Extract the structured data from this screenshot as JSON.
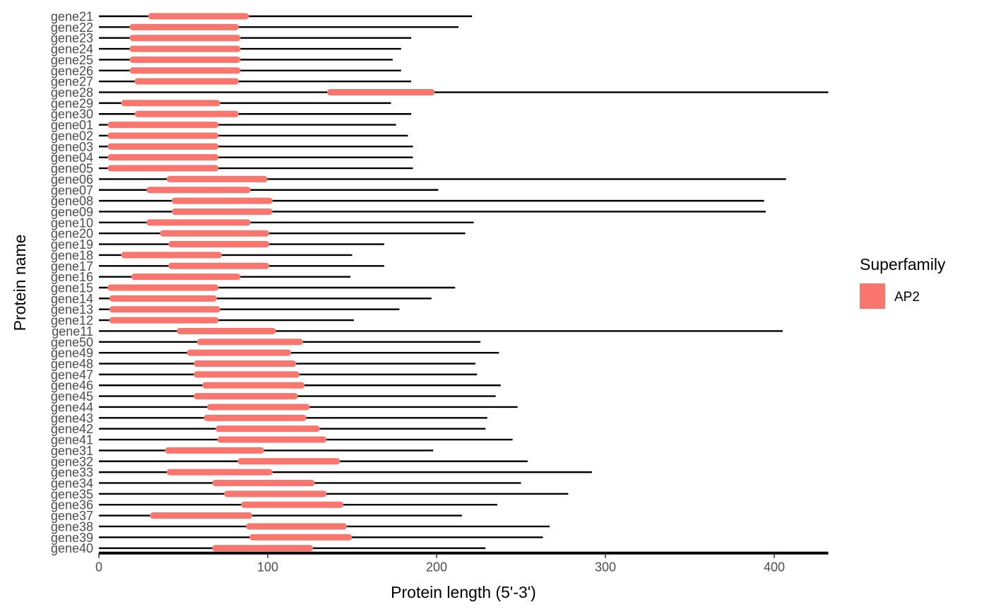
{
  "chart_data": {
    "type": "bar",
    "title": "",
    "xlabel": "Protein length (5'-3')",
    "ylabel": "Protein name",
    "xlim": [
      0,
      432
    ],
    "xticks": [
      0,
      100,
      200,
      300,
      400
    ],
    "grid": false,
    "legend": {
      "title": "Superfamily",
      "placement": "right",
      "entries": [
        {
          "label": "AP2",
          "color": "#F8766D"
        }
      ]
    },
    "colors": {
      "protein_line": "#000000",
      "domain": "#F8766D",
      "axis": "#000000"
    },
    "proteins": [
      {
        "name": "gene21",
        "length": 221,
        "domain_start": 31,
        "domain_end": 87
      },
      {
        "name": "gene22",
        "length": 213,
        "domain_start": 20,
        "domain_end": 81
      },
      {
        "name": "gene23",
        "length": 185,
        "domain_start": 20,
        "domain_end": 82
      },
      {
        "name": "gene24",
        "length": 179,
        "domain_start": 20,
        "domain_end": 82
      },
      {
        "name": "gene25",
        "length": 174,
        "domain_start": 20,
        "domain_end": 82
      },
      {
        "name": "gene26",
        "length": 179,
        "domain_start": 20,
        "domain_end": 82
      },
      {
        "name": "gene27",
        "length": 185,
        "domain_start": 23,
        "domain_end": 81
      },
      {
        "name": "gene28",
        "length": 432,
        "domain_start": 137,
        "domain_end": 197
      },
      {
        "name": "gene29",
        "length": 173,
        "domain_start": 15,
        "domain_end": 70
      },
      {
        "name": "gene30",
        "length": 185,
        "domain_start": 23,
        "domain_end": 81
      },
      {
        "name": "gene01",
        "length": 176,
        "domain_start": 7,
        "domain_end": 69
      },
      {
        "name": "gene02",
        "length": 183,
        "domain_start": 7,
        "domain_end": 69
      },
      {
        "name": "gene03",
        "length": 186,
        "domain_start": 7,
        "domain_end": 69
      },
      {
        "name": "gene04",
        "length": 186,
        "domain_start": 7,
        "domain_end": 69
      },
      {
        "name": "gene05",
        "length": 186,
        "domain_start": 7,
        "domain_end": 69
      },
      {
        "name": "gene06",
        "length": 407,
        "domain_start": 42,
        "domain_end": 98
      },
      {
        "name": "gene07",
        "length": 201,
        "domain_start": 30,
        "domain_end": 88
      },
      {
        "name": "gene08",
        "length": 394,
        "domain_start": 45,
        "domain_end": 101
      },
      {
        "name": "gene09",
        "length": 395,
        "domain_start": 45,
        "domain_end": 101
      },
      {
        "name": "gene10",
        "length": 222,
        "domain_start": 30,
        "domain_end": 88
      },
      {
        "name": "gene20",
        "length": 217,
        "domain_start": 38,
        "domain_end": 99
      },
      {
        "name": "gene19",
        "length": 169,
        "domain_start": 43,
        "domain_end": 99
      },
      {
        "name": "gene18",
        "length": 150,
        "domain_start": 15,
        "domain_end": 71
      },
      {
        "name": "gene17",
        "length": 169,
        "domain_start": 43,
        "domain_end": 99
      },
      {
        "name": "gene16",
        "length": 149,
        "domain_start": 21,
        "domain_end": 82
      },
      {
        "name": "gene15",
        "length": 211,
        "domain_start": 7,
        "domain_end": 69
      },
      {
        "name": "gene14",
        "length": 197,
        "domain_start": 8,
        "domain_end": 68
      },
      {
        "name": "gene13",
        "length": 178,
        "domain_start": 8,
        "domain_end": 70
      },
      {
        "name": "gene12",
        "length": 151,
        "domain_start": 8,
        "domain_end": 69
      },
      {
        "name": "gene11",
        "length": 405,
        "domain_start": 48,
        "domain_end": 103
      },
      {
        "name": "gene50",
        "length": 226,
        "domain_start": 60,
        "domain_end": 119
      },
      {
        "name": "gene49",
        "length": 237,
        "domain_start": 54,
        "domain_end": 112
      },
      {
        "name": "gene48",
        "length": 223,
        "domain_start": 58,
        "domain_end": 115
      },
      {
        "name": "gene47",
        "length": 224,
        "domain_start": 58,
        "domain_end": 117
      },
      {
        "name": "gene46",
        "length": 238,
        "domain_start": 63,
        "domain_end": 120
      },
      {
        "name": "gene45",
        "length": 235,
        "domain_start": 58,
        "domain_end": 116
      },
      {
        "name": "gene44",
        "length": 248,
        "domain_start": 66,
        "domain_end": 123
      },
      {
        "name": "gene43",
        "length": 230,
        "domain_start": 64,
        "domain_end": 121
      },
      {
        "name": "gene42",
        "length": 229,
        "domain_start": 71,
        "domain_end": 129
      },
      {
        "name": "gene41",
        "length": 245,
        "domain_start": 72,
        "domain_end": 133
      },
      {
        "name": "gene31",
        "length": 198,
        "domain_start": 41,
        "domain_end": 96
      },
      {
        "name": "gene32",
        "length": 254,
        "domain_start": 84,
        "domain_end": 141
      },
      {
        "name": "gene33",
        "length": 292,
        "domain_start": 42,
        "domain_end": 101
      },
      {
        "name": "gene34",
        "length": 250,
        "domain_start": 69,
        "domain_end": 126
      },
      {
        "name": "gene35",
        "length": 278,
        "domain_start": 76,
        "domain_end": 133
      },
      {
        "name": "gene36",
        "length": 236,
        "domain_start": 86,
        "domain_end": 143
      },
      {
        "name": "gene37",
        "length": 215,
        "domain_start": 32,
        "domain_end": 89
      },
      {
        "name": "gene38",
        "length": 267,
        "domain_start": 89,
        "domain_end": 145
      },
      {
        "name": "gene39",
        "length": 263,
        "domain_start": 91,
        "domain_end": 148
      },
      {
        "name": "gene40",
        "length": 229,
        "domain_start": 69,
        "domain_end": 125
      }
    ]
  }
}
